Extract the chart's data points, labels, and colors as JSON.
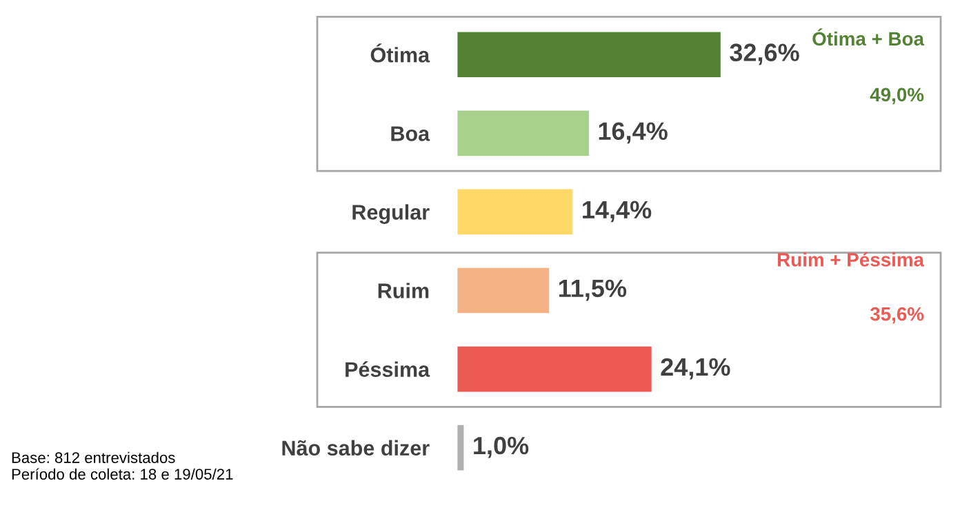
{
  "chart_data": {
    "type": "bar",
    "orientation": "horizontal",
    "categories": [
      "Ótima",
      "Boa",
      "Regular",
      "Ruim",
      "Péssima",
      "Não sabe dizer"
    ],
    "values": [
      32.6,
      16.4,
      14.4,
      11.5,
      24.1,
      1.0
    ],
    "colors": [
      "#548235",
      "#a9d18e",
      "#ffd966",
      "#f4b183",
      "#ec5a55",
      "#b0b0b0"
    ],
    "value_labels": [
      "32,6%",
      "16,4%",
      "14,4%",
      "11,5%",
      "24,1%",
      "1,0%"
    ],
    "annotations": [
      "Ótima + Boa",
      "49,0%",
      "Ruim + Péssima",
      "35,6%",
      "Base: 812 entrevistados",
      "Período de coleta: 18 e 19/05/21"
    ],
    "grid": false,
    "legend": false
  }
}
